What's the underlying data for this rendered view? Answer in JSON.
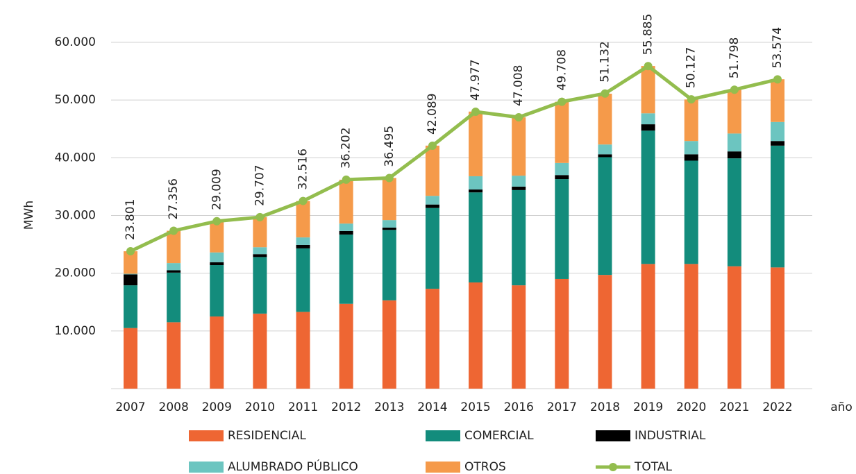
{
  "chart_data": {
    "type": "bar",
    "stacked": true,
    "y_label": "MWh",
    "x_label": "año",
    "categories": [
      "2007",
      "2008",
      "2009",
      "2010",
      "2011",
      "2012",
      "2013",
      "2014",
      "2015",
      "2016",
      "2017",
      "2018",
      "2019",
      "2020",
      "2021",
      "2022"
    ],
    "ylim": [
      0,
      66000
    ],
    "yticks": [
      {
        "value": 10000,
        "label": "10.000"
      },
      {
        "value": 20000,
        "label": "20.000"
      },
      {
        "value": 30000,
        "label": "30.000"
      },
      {
        "value": 40000,
        "label": "40.000"
      },
      {
        "value": 50000,
        "label": "50.000"
      },
      {
        "value": 60000,
        "label": "60.000"
      }
    ],
    "grid": true,
    "series": [
      {
        "name": "RESIDENCIAL",
        "color": "#ee6633",
        "values": [
          10500,
          11500,
          12500,
          13000,
          13300,
          14700,
          15300,
          17300,
          18400,
          17900,
          19000,
          19700,
          21600,
          21600,
          21200,
          21000
        ]
      },
      {
        "name": "COMERCIAL",
        "color": "#138c7c",
        "values": [
          7400,
          8600,
          8900,
          9800,
          11000,
          12000,
          12200,
          14000,
          15600,
          16500,
          17300,
          20400,
          23100,
          17900,
          18700,
          21100
        ]
      },
      {
        "name": "INDUSTRIAL",
        "color": "#000000",
        "values": [
          1900,
          400,
          500,
          500,
          600,
          600,
          400,
          600,
          500,
          600,
          700,
          500,
          1100,
          1100,
          1200,
          800
        ]
      },
      {
        "name": "ALUMBRADO PÚBLICO",
        "color": "#6cc5c0",
        "values": [
          100,
          1250,
          1700,
          1200,
          1300,
          1300,
          1300,
          1500,
          2300,
          1900,
          2100,
          1700,
          1900,
          2300,
          3100,
          3300
        ]
      },
      {
        "name": "OTROS",
        "color": "#f59a4a",
        "values": [
          3900,
          5600,
          5400,
          5200,
          6300,
          7600,
          7300,
          8700,
          11200,
          10100,
          10600,
          8800,
          8200,
          7200,
          7600,
          7400
        ]
      },
      {
        "name": "TOTAL",
        "type": "line",
        "color": "#93bd4e",
        "values": [
          23801,
          27356,
          29009,
          29707,
          32516,
          36202,
          36495,
          42089,
          47977,
          47008,
          49708,
          51132,
          55885,
          50127,
          51798,
          53574
        ],
        "value_labels": [
          "23.801",
          "27.356",
          "29.009",
          "29.707",
          "32.516",
          "36.202",
          "36.495",
          "42.089",
          "47.977",
          "47.008",
          "49.708",
          "51.132",
          "55.885",
          "50.127",
          "51.798",
          "53.574"
        ]
      }
    ]
  }
}
